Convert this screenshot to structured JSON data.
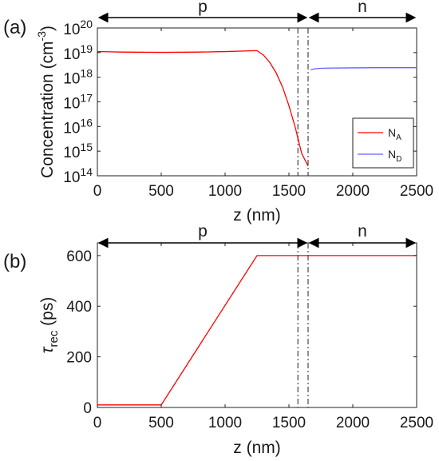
{
  "chart_data": [
    {
      "panel_label": "(a)",
      "type": "line",
      "xlabel": "z (nm)",
      "ylabel": "Concentration (cm",
      "ylabel_sup": "-3",
      "ylabel_end": ")",
      "yscale": "log",
      "xlim": [
        0,
        2500
      ],
      "ylim": [
        100000000000000.0,
        1e+20
      ],
      "xticks": [
        0,
        500,
        1000,
        1500,
        2000,
        2500
      ],
      "ytick_exponents": [
        14,
        15,
        16,
        17,
        18,
        19,
        20
      ],
      "ytick_base": "10",
      "grid": false,
      "legend_position": "bottom-right",
      "regions": [
        {
          "label": "p",
          "from": 0,
          "to": 1650
        },
        {
          "label": "n",
          "from": 1650,
          "to": 2500
        }
      ],
      "junction_lines_x": [
        1570,
        1650
      ],
      "series": [
        {
          "name": "N",
          "name_sub": "A",
          "color": "#ff0000",
          "x": [
            0,
            200,
            500,
            800,
            1000,
            1250,
            1300,
            1350,
            1400,
            1450,
            1500,
            1550,
            1600,
            1650
          ],
          "y": [
            1.1e+19,
            1.05e+19,
            1.02e+19,
            1.05e+19,
            1.1e+19,
            1.2e+19,
            8e+18,
            4e+18,
            1.5e+18,
            4e+17,
            7e+16,
            9000000000000000.0,
            800000000000000.0,
            250000000000000.0
          ]
        },
        {
          "name": "N",
          "name_sub": "D",
          "color": "#6060ff",
          "x": [
            1670,
            1700,
            1750,
            1800,
            2000,
            2200,
            2500
          ],
          "y": [
            2e+18,
            2.2e+18,
            2.3e+18,
            2.35e+18,
            2.4e+18,
            2.45e+18,
            2.45e+18
          ]
        }
      ]
    },
    {
      "panel_label": "(b)",
      "type": "line",
      "xlabel": "z (nm)",
      "ylabel_symbol": "τ",
      "ylabel_sub": "rec",
      "ylabel_unit": "(ps)",
      "xlim": [
        0,
        2500
      ],
      "ylim": [
        0,
        650
      ],
      "xticks": [
        0,
        500,
        1000,
        1500,
        2000,
        2500
      ],
      "yticks": [
        0,
        200,
        400,
        600
      ],
      "grid": false,
      "regions": [
        {
          "label": "p",
          "from": 0,
          "to": 1650
        },
        {
          "label": "n",
          "from": 1650,
          "to": 2500
        }
      ],
      "junction_lines_x": [
        1570,
        1650
      ],
      "series": [
        {
          "color": "#ff0000",
          "x": [
            0,
            500,
            1250,
            2500
          ],
          "y": [
            10,
            10,
            600,
            600
          ]
        }
      ]
    }
  ]
}
